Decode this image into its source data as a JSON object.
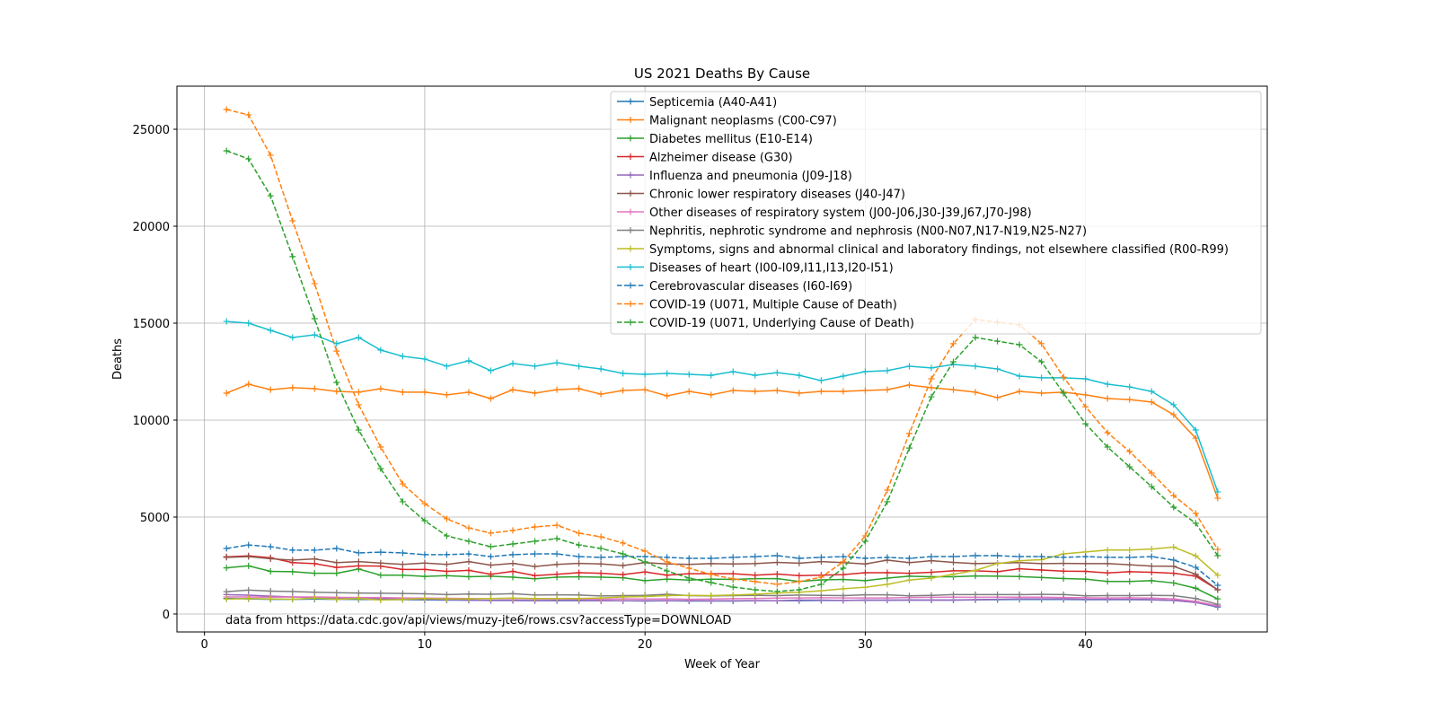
{
  "chart_data": {
    "type": "line",
    "title": "US 2021 Deaths By Cause",
    "xlabel": "Week of Year",
    "ylabel": "Deaths",
    "xlim": [
      -1.25,
      48.25
    ],
    "ylim": [
      -926,
      27222
    ],
    "xticks": [
      0,
      10,
      20,
      30,
      40
    ],
    "yticks": [
      0,
      5000,
      10000,
      15000,
      20000,
      25000
    ],
    "grid": true,
    "legend_position": "top-right",
    "annotation": "data from https://data.cdc.gov/api/views/muzy-jte6/rows.csv?accessType=DOWNLOAD",
    "x": [
      1,
      2,
      3,
      4,
      5,
      6,
      7,
      8,
      9,
      10,
      11,
      12,
      13,
      14,
      15,
      16,
      17,
      18,
      19,
      20,
      21,
      22,
      23,
      24,
      25,
      26,
      27,
      28,
      29,
      30,
      31,
      32,
      33,
      34,
      35,
      36,
      37,
      38,
      39,
      40,
      41,
      42,
      43,
      44,
      45,
      46
    ],
    "series": [
      {
        "name": "Septicemia (A40-A41)",
        "color": "#1f77b4",
        "dashed": false,
        "values": [
          800,
          780,
          760,
          760,
          770,
          760,
          750,
          740,
          740,
          730,
          720,
          710,
          700,
          700,
          690,
          690,
          690,
          680,
          680,
          670,
          680,
          670,
          670,
          670,
          680,
          680,
          690,
          700,
          700,
          710,
          710,
          720,
          720,
          720,
          730,
          740,
          750,
          750,
          750,
          740,
          740,
          740,
          730,
          700,
          600,
          360
        ]
      },
      {
        "name": "Malignant neoplasms (C00-C97)",
        "color": "#ff7f0e",
        "dashed": false,
        "values": [
          11390,
          11850,
          11570,
          11670,
          11620,
          11480,
          11440,
          11620,
          11440,
          11440,
          11300,
          11440,
          11110,
          11570,
          11390,
          11570,
          11620,
          11340,
          11530,
          11570,
          11250,
          11480,
          11300,
          11530,
          11480,
          11530,
          11390,
          11480,
          11480,
          11530,
          11570,
          11810,
          11670,
          11570,
          11440,
          11160,
          11480,
          11390,
          11440,
          11300,
          11110,
          11060,
          10930,
          10280,
          9070,
          5970
        ]
      },
      {
        "name": "Diabetes mellitus (E10-E14)",
        "color": "#2ca02c",
        "dashed": false,
        "values": [
          2380,
          2480,
          2200,
          2180,
          2100,
          2100,
          2320,
          2000,
          2000,
          1940,
          1980,
          1920,
          1950,
          1900,
          1820,
          1900,
          1920,
          1900,
          1870,
          1720,
          1800,
          1750,
          1800,
          1780,
          1820,
          1820,
          1680,
          1760,
          1780,
          1720,
          1850,
          1950,
          1920,
          1920,
          1960,
          1950,
          1930,
          1880,
          1830,
          1800,
          1680,
          1680,
          1720,
          1600,
          1330,
          780
        ]
      },
      {
        "name": "Alzheimer disease (G30)",
        "color": "#d62728",
        "dashed": false,
        "values": [
          2950,
          3000,
          2900,
          2650,
          2600,
          2400,
          2480,
          2470,
          2300,
          2300,
          2200,
          2250,
          2050,
          2200,
          1980,
          2050,
          2130,
          2100,
          2030,
          2170,
          2000,
          2080,
          2080,
          2080,
          2000,
          2060,
          1980,
          2000,
          2030,
          2130,
          2130,
          2100,
          2150,
          2230,
          2230,
          2180,
          2330,
          2270,
          2210,
          2200,
          2120,
          2180,
          2150,
          2100,
          1950,
          1250
        ]
      },
      {
        "name": "Influenza and pneumonia (J09-J18)",
        "color": "#9467bd",
        "dashed": false,
        "values": [
          1000,
          970,
          920,
          880,
          850,
          820,
          800,
          790,
          770,
          760,
          740,
          720,
          700,
          700,
          690,
          700,
          700,
          690,
          680,
          680,
          690,
          680,
          680,
          680,
          690,
          680,
          720,
          720,
          700,
          720,
          720,
          720,
          720,
          720,
          740,
          760,
          780,
          780,
          780,
          760,
          760,
          760,
          740,
          700,
          600,
          380
        ]
      },
      {
        "name": "Chronic lower respiratory diseases (J40-J47)",
        "color": "#8c564b",
        "dashed": false,
        "values": [
          2920,
          2960,
          2850,
          2780,
          2840,
          2650,
          2700,
          2630,
          2560,
          2630,
          2560,
          2700,
          2520,
          2610,
          2450,
          2560,
          2610,
          2580,
          2500,
          2650,
          2580,
          2560,
          2600,
          2580,
          2600,
          2660,
          2620,
          2700,
          2650,
          2580,
          2780,
          2650,
          2750,
          2660,
          2600,
          2620,
          2650,
          2600,
          2610,
          2600,
          2600,
          2540,
          2470,
          2460,
          2050,
          1250
        ]
      },
      {
        "name": "Other diseases of respiratory system (J00-J06,J30-J39,J67,J70-J98)",
        "color": "#e377c2",
        "dashed": false,
        "values": [
          880,
          880,
          870,
          880,
          880,
          860,
          850,
          850,
          830,
          820,
          810,
          800,
          790,
          800,
          780,
          780,
          770,
          760,
          780,
          770,
          780,
          760,
          770,
          790,
          800,
          820,
          830,
          840,
          830,
          830,
          830,
          850,
          860,
          870,
          860,
          870,
          870,
          870,
          850,
          840,
          830,
          840,
          820,
          780,
          650,
          430
        ]
      },
      {
        "name": "Nephritis, nephrotic syndrome and nephrosis (N00-N07,N17-N19,N25-N27)",
        "color": "#7f7f7f",
        "dashed": false,
        "values": [
          1150,
          1230,
          1180,
          1160,
          1120,
          1100,
          1080,
          1070,
          1060,
          1040,
          1000,
          1030,
          1020,
          1050,
          980,
          990,
          980,
          930,
          950,
          960,
          1020,
          950,
          930,
          950,
          960,
          950,
          980,
          960,
          950,
          990,
          990,
          940,
          960,
          1000,
          1000,
          1000,
          1000,
          1010,
          1000,
          940,
          950,
          950,
          960,
          950,
          800,
          500
        ]
      },
      {
        "name": "Symptoms, signs and abnormal clinical and laboratory findings, not elsewhere classified (R00-R99)",
        "color": "#bcbd22",
        "dashed": false,
        "values": [
          770,
          800,
          780,
          760,
          820,
          760,
          800,
          720,
          750,
          800,
          770,
          780,
          800,
          820,
          800,
          800,
          800,
          830,
          880,
          900,
          950,
          960,
          950,
          980,
          1020,
          1080,
          1120,
          1200,
          1300,
          1380,
          1530,
          1750,
          1850,
          2050,
          2250,
          2600,
          2750,
          2800,
          3100,
          3200,
          3300,
          3300,
          3350,
          3450,
          3000,
          2000
        ]
      },
      {
        "name": "Diseases of heart (I00-I09,I11,I13,I20-I51)",
        "color": "#17becf",
        "dashed": false,
        "values": [
          15090,
          15000,
          14630,
          14260,
          14400,
          13940,
          14260,
          13610,
          13290,
          13150,
          12780,
          13060,
          12550,
          12920,
          12780,
          12960,
          12780,
          12640,
          12410,
          12360,
          12410,
          12360,
          12310,
          12500,
          12310,
          12450,
          12310,
          12040,
          12270,
          12500,
          12550,
          12780,
          12690,
          12870,
          12780,
          12640,
          12270,
          12180,
          12180,
          12130,
          11850,
          11710,
          11480,
          10790,
          9490,
          6300
        ]
      },
      {
        "name": "Cerebrovascular diseases (I60-I69)",
        "color": "#1f77b4",
        "dashed": true,
        "values": [
          3380,
          3560,
          3470,
          3290,
          3290,
          3380,
          3150,
          3190,
          3150,
          3060,
          3060,
          3100,
          2960,
          3060,
          3100,
          3100,
          2960,
          2920,
          2960,
          2960,
          2920,
          2870,
          2870,
          2920,
          2960,
          3010,
          2870,
          2920,
          2960,
          2870,
          2920,
          2870,
          2960,
          2960,
          3010,
          3010,
          2960,
          2960,
          2920,
          2960,
          2920,
          2920,
          2960,
          2780,
          2410,
          1480
        ]
      },
      {
        "name": "COVID-19 (U071, Multiple Cause of Death)",
        "color": "#ff7f0e",
        "dashed": true,
        "values": [
          26020,
          25740,
          23660,
          20280,
          17040,
          13560,
          10790,
          8610,
          6710,
          5690,
          4910,
          4440,
          4170,
          4310,
          4490,
          4580,
          4170,
          3980,
          3660,
          3240,
          2690,
          2360,
          2040,
          1810,
          1670,
          1530,
          1670,
          1900,
          2690,
          4030,
          6390,
          9310,
          12130,
          13940,
          15190,
          15050,
          14910,
          13940,
          12220,
          10690,
          9350,
          8380,
          7270,
          6110,
          5190,
          3330
        ]
      },
      {
        "name": "COVID-19 (U071, Underlying Cause of Death)",
        "color": "#2ca02c",
        "dashed": true,
        "values": [
          23890,
          23470,
          21570,
          18430,
          15230,
          11940,
          9490,
          7500,
          5790,
          4810,
          4030,
          3750,
          3470,
          3610,
          3750,
          3890,
          3560,
          3380,
          3100,
          2690,
          2220,
          1850,
          1620,
          1390,
          1250,
          1160,
          1250,
          1530,
          2360,
          3750,
          5790,
          8560,
          11200,
          13010,
          14260,
          14070,
          13890,
          13010,
          11390,
          9810,
          8610,
          7590,
          6570,
          5510,
          4680,
          3010
        ]
      }
    ]
  }
}
